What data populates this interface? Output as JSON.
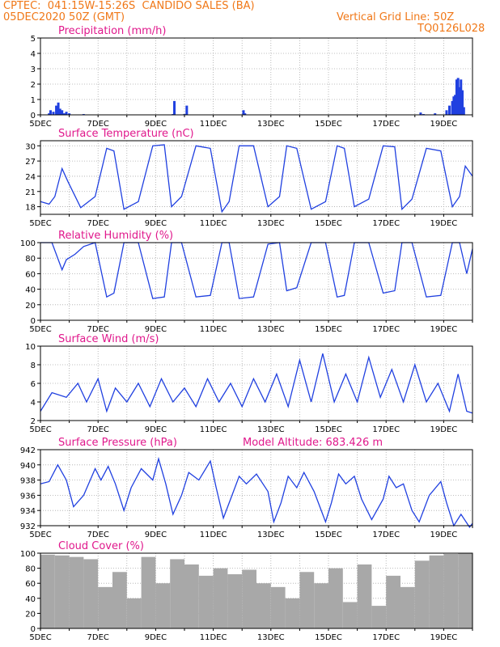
{
  "header": {
    "line1_left": "CPTEC:  041:15W-15:26S  CANDIDO SALES (BA)",
    "line2_left": "05DEC2020 50Z (GMT)",
    "line2_right": "Vertical Grid Line: 50Z",
    "line3_right": "TQ0126L028"
  },
  "colors": {
    "line": "#2040e0",
    "title": "#e0188c",
    "header": "#f07818",
    "cloud": "#a8a8a8"
  },
  "chart_data": [
    {
      "id": "precip",
      "type": "bar",
      "title": "Precipitation (mm/h)",
      "ylim": [
        0,
        5
      ],
      "yticks": [
        0,
        1,
        2,
        3,
        4,
        5
      ],
      "xlabels": [
        "5DEC",
        "7DEC",
        "9DEC",
        "11DEC",
        "13DEC",
        "15DEC",
        "17DEC",
        "19DEC"
      ],
      "xlim_days": [
        0,
        15
      ],
      "x": [
        0.3,
        0.35,
        0.45,
        0.55,
        0.62,
        0.68,
        0.75,
        0.82,
        0.9,
        1.0,
        1.5,
        4.6,
        4.65,
        5.0,
        5.08,
        7.05,
        7.1,
        13.2,
        13.3,
        13.7,
        14.1,
        14.2,
        14.3,
        14.35,
        14.4,
        14.45,
        14.5,
        14.55,
        14.6,
        14.65,
        14.7
      ],
      "values": [
        0.1,
        0.3,
        0.2,
        0.6,
        0.8,
        0.4,
        0.3,
        0.1,
        0.2,
        0.1,
        0.05,
        0.05,
        0.9,
        0.05,
        0.6,
        0.3,
        0.1,
        0.15,
        0.05,
        0.1,
        0.3,
        0.6,
        0.9,
        1.2,
        1.3,
        2.3,
        2.4,
        1.8,
        2.3,
        1.6,
        0.5
      ]
    },
    {
      "id": "temp",
      "type": "line",
      "title": "Surface Temperature (nC)",
      "ylim": [
        16.5,
        31
      ],
      "yticks": [
        18,
        21,
        24,
        27,
        30
      ],
      "xlabels": [
        "5DEC",
        "7DEC",
        "9DEC",
        "11DEC",
        "13DEC",
        "15DEC",
        "17DEC",
        "19DEC"
      ],
      "xlim_days": [
        0,
        15
      ],
      "x": [
        0,
        0.3,
        0.5,
        0.75,
        0.95,
        1.4,
        1.9,
        2.3,
        2.55,
        2.9,
        3.4,
        3.9,
        4.3,
        4.55,
        4.9,
        5.4,
        5.9,
        6.3,
        6.55,
        6.9,
        7.4,
        7.9,
        8.3,
        8.55,
        8.9,
        9.4,
        9.9,
        10.3,
        10.55,
        10.9,
        11.4,
        11.9,
        12.3,
        12.55,
        12.9,
        13.4,
        13.9,
        14.3,
        14.55,
        14.75,
        15
      ],
      "values": [
        19,
        18.5,
        20,
        25.5,
        23,
        17.8,
        20,
        29.5,
        29,
        17.5,
        19,
        30,
        30.2,
        18,
        20,
        30,
        29.5,
        17,
        19,
        30,
        30,
        18,
        20,
        30,
        29.5,
        17.5,
        19,
        30,
        29.5,
        18,
        19.5,
        30,
        29.8,
        17.5,
        19.5,
        29.5,
        29,
        18,
        20,
        26,
        24
      ]
    },
    {
      "id": "rh",
      "type": "line",
      "title": "Relative Humidity (%)",
      "ylim": [
        0,
        100
      ],
      "yticks": [
        0,
        20,
        40,
        60,
        80,
        100
      ],
      "xlabels": [
        "5DEC",
        "7DEC",
        "9DEC",
        "11DEC",
        "13DEC",
        "15DEC",
        "17DEC",
        "19DEC"
      ],
      "xlim_days": [
        0,
        15
      ],
      "x": [
        0,
        0.4,
        0.75,
        0.9,
        1.2,
        1.5,
        1.9,
        2.3,
        2.55,
        2.9,
        3.4,
        3.9,
        4.3,
        4.55,
        4.9,
        5.4,
        5.9,
        6.3,
        6.55,
        6.9,
        7.4,
        7.9,
        8.3,
        8.55,
        8.9,
        9.4,
        9.9,
        10.3,
        10.55,
        10.9,
        11.4,
        11.9,
        12.3,
        12.55,
        12.9,
        13.4,
        13.9,
        14.3,
        14.55,
        14.8,
        15
      ],
      "values": [
        100,
        100,
        65,
        78,
        85,
        95,
        100,
        30,
        35,
        100,
        100,
        28,
        30,
        100,
        100,
        30,
        32,
        100,
        100,
        28,
        30,
        98,
        100,
        38,
        42,
        100,
        100,
        30,
        32,
        100,
        100,
        35,
        38,
        100,
        100,
        30,
        32,
        100,
        100,
        60,
        92
      ]
    },
    {
      "id": "wind",
      "type": "line",
      "title": "Surface Wind (m/s)",
      "ylim": [
        2,
        10
      ],
      "yticks": [
        2,
        4,
        6,
        8,
        10
      ],
      "xlabels": [
        "5DEC",
        "7DEC",
        "9DEC",
        "11DEC",
        "13DEC",
        "15DEC",
        "17DEC",
        "19DEC"
      ],
      "xlim_days": [
        0,
        15
      ],
      "x": [
        0,
        0.4,
        0.9,
        1.3,
        1.6,
        2.0,
        2.3,
        2.6,
        3.0,
        3.4,
        3.8,
        4.2,
        4.6,
        5.0,
        5.4,
        5.8,
        6.2,
        6.6,
        7.0,
        7.4,
        7.8,
        8.2,
        8.6,
        9.0,
        9.4,
        9.8,
        10.2,
        10.6,
        11.0,
        11.4,
        11.8,
        12.2,
        12.6,
        13.0,
        13.4,
        13.8,
        14.2,
        14.5,
        14.8,
        15
      ],
      "values": [
        3,
        5,
        4.5,
        6,
        4,
        6.5,
        3,
        5.5,
        4,
        6,
        3.5,
        6.5,
        4,
        5.5,
        3.5,
        6.5,
        4,
        6,
        3.5,
        6.5,
        4,
        7,
        3.5,
        8.5,
        4,
        9.2,
        4,
        7,
        4,
        8.8,
        4.5,
        7.5,
        4,
        8,
        4,
        6,
        3,
        7,
        3,
        2.8
      ]
    },
    {
      "id": "pres",
      "type": "line",
      "title": "Surface Pressure (hPa)",
      "subtitle": "Model Altitude: 683.426 m",
      "ylim": [
        932,
        942
      ],
      "yticks": [
        932,
        934,
        936,
        938,
        940,
        942
      ],
      "xlabels": [
        "5DEC",
        "7DEC",
        "9DEC",
        "11DEC",
        "13DEC",
        "15DEC",
        "17DEC",
        "19DEC"
      ],
      "xlim_days": [
        0,
        15
      ],
      "x": [
        0,
        0.3,
        0.6,
        0.9,
        1.15,
        1.5,
        1.9,
        2.1,
        2.35,
        2.6,
        2.9,
        3.15,
        3.5,
        3.9,
        4.1,
        4.35,
        4.6,
        4.9,
        5.15,
        5.5,
        5.9,
        6.1,
        6.35,
        6.6,
        6.9,
        7.15,
        7.5,
        7.9,
        8.1,
        8.35,
        8.6,
        8.9,
        9.15,
        9.5,
        9.9,
        10.1,
        10.35,
        10.6,
        10.9,
        11.15,
        11.5,
        11.9,
        12.1,
        12.35,
        12.6,
        12.9,
        13.15,
        13.5,
        13.9,
        14.1,
        14.35,
        14.6,
        14.9,
        15
      ],
      "values": [
        937.5,
        937.8,
        940,
        938,
        934.5,
        936,
        939.5,
        938,
        939.8,
        937.5,
        934,
        937,
        939.5,
        938,
        940.8,
        937.5,
        933.5,
        936,
        939,
        938,
        940.5,
        937,
        933,
        935.5,
        938.5,
        937.5,
        938.8,
        936.5,
        932.5,
        935,
        938.5,
        937,
        939,
        936.5,
        932.5,
        935,
        938.8,
        937.5,
        938.5,
        935.5,
        932.8,
        935.5,
        938.5,
        937,
        937.5,
        934,
        932.5,
        936,
        937.8,
        935,
        932,
        933.5,
        931.8,
        932.3
      ]
    },
    {
      "id": "cloud",
      "type": "bar",
      "title": "Cloud Cover (%)",
      "ylim": [
        0,
        100
      ],
      "yticks": [
        0,
        20,
        40,
        60,
        80,
        100
      ],
      "xlabels": [
        "5DEC",
        "7DEC",
        "9DEC",
        "11DEC",
        "13DEC",
        "15DEC",
        "17DEC",
        "19DEC"
      ],
      "xlim_days": [
        0,
        15
      ],
      "x": [
        0,
        0.5,
        1.0,
        1.5,
        2.0,
        2.5,
        3.0,
        3.5,
        4.0,
        4.5,
        5.0,
        5.5,
        6.0,
        6.5,
        7.0,
        7.5,
        8.0,
        8.5,
        9.0,
        9.5,
        10.0,
        10.5,
        11.0,
        11.5,
        12.0,
        12.5,
        13.0,
        13.5,
        14.0,
        14.5
      ],
      "values": [
        98,
        97,
        95,
        92,
        55,
        75,
        40,
        95,
        60,
        92,
        85,
        70,
        80,
        72,
        78,
        60,
        55,
        40,
        75,
        60,
        80,
        35,
        85,
        30,
        70,
        55,
        90,
        97,
        99,
        100
      ]
    }
  ]
}
